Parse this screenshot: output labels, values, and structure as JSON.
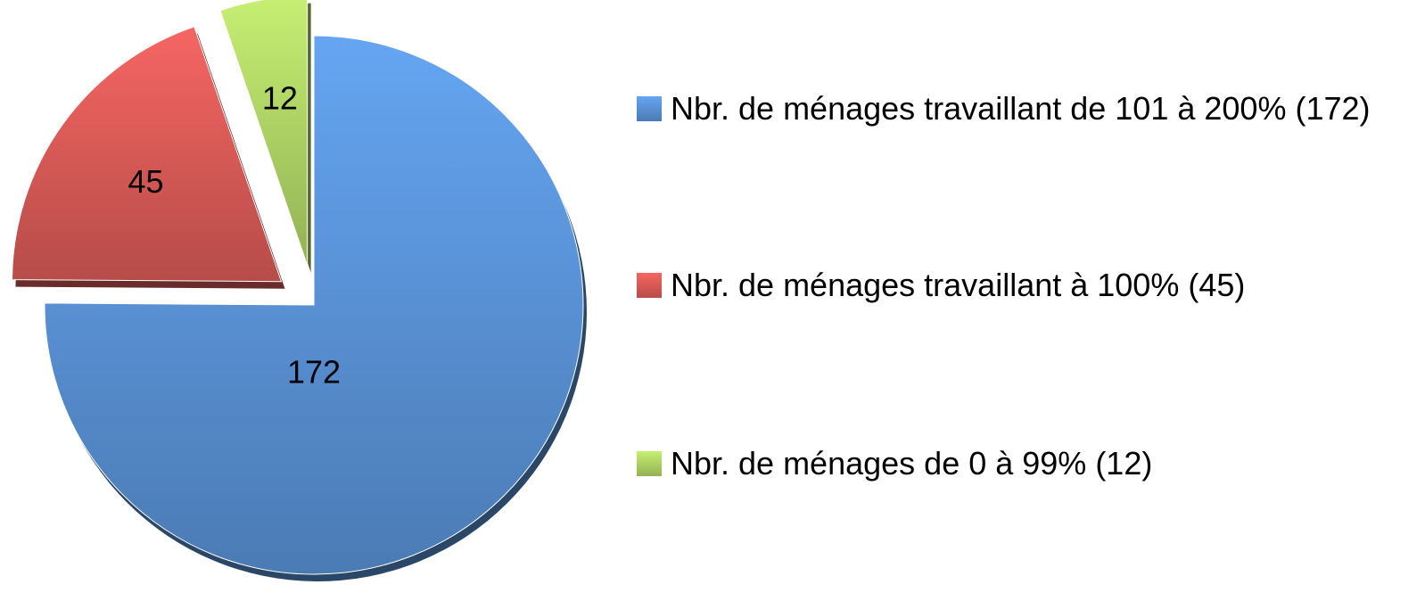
{
  "chart_data": {
    "type": "pie",
    "categories": [
      "Nbr. de ménages travaillant de 101 à 200% (172)",
      "Nbr. de ménages travaillant à 100% (45)",
      "Nbr. de ménages de 0 à 99% (12)"
    ],
    "values": [
      172,
      45,
      12
    ],
    "colors": [
      "#4f81bd",
      "#c0504d",
      "#9bbb59"
    ],
    "legend": "right"
  }
}
